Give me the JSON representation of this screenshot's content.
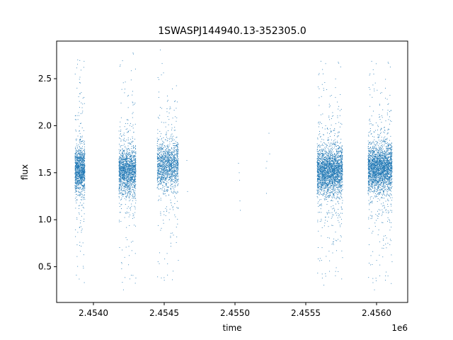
{
  "chart_data": {
    "type": "scatter",
    "title": "1SWASPJ144940.13-352305.0",
    "xlabel": "time",
    "ylabel": "flux",
    "x_offset_label": "1e6",
    "xlim": [
      2453740,
      2456220
    ],
    "ylim": [
      0.12,
      2.9
    ],
    "x_ticks": [
      2454000,
      2454500,
      2455000,
      2455500,
      2456000
    ],
    "x_tick_labels": [
      "2.4540",
      "2.4545",
      "2.4550",
      "2.4555",
      "2.4560"
    ],
    "y_ticks": [
      0.5,
      1.0,
      1.5,
      2.0,
      2.5
    ],
    "y_tick_labels": [
      "0.5",
      "1.0",
      "1.5",
      "2.0",
      "2.5"
    ],
    "grid": false,
    "marker_color": "#1f77b4",
    "observing_seasons": [
      {
        "start": 2453870,
        "end": 2453940,
        "mean_flux": 1.53,
        "flux_min": 0.25,
        "flux_max": 2.78,
        "count": 1200
      },
      {
        "start": 2454180,
        "end": 2454300,
        "mean_flux": 1.52,
        "flux_min": 0.25,
        "flux_max": 2.8,
        "count": 1600
      },
      {
        "start": 2454450,
        "end": 2454600,
        "mean_flux": 1.58,
        "flux_min": 0.25,
        "flux_max": 2.82,
        "count": 1400
      },
      {
        "start": 2455580,
        "end": 2455760,
        "mean_flux": 1.52,
        "flux_min": 0.3,
        "flux_max": 2.7,
        "count": 2600
      },
      {
        "start": 2455940,
        "end": 2456110,
        "mean_flux": 1.55,
        "flux_min": 0.25,
        "flux_max": 2.7,
        "count": 2600
      }
    ],
    "sparse_points": [
      {
        "x": 2454660,
        "y": 1.63
      },
      {
        "x": 2454665,
        "y": 1.3
      },
      {
        "x": 2455025,
        "y": 1.6
      },
      {
        "x": 2455030,
        "y": 1.5
      },
      {
        "x": 2455032,
        "y": 1.42
      },
      {
        "x": 2455035,
        "y": 1.2
      },
      {
        "x": 2455038,
        "y": 1.1
      },
      {
        "x": 2455220,
        "y": 1.55
      },
      {
        "x": 2455225,
        "y": 1.62
      },
      {
        "x": 2455222,
        "y": 1.28
      },
      {
        "x": 2455240,
        "y": 1.92
      },
      {
        "x": 2455245,
        "y": 1.7
      }
    ]
  }
}
